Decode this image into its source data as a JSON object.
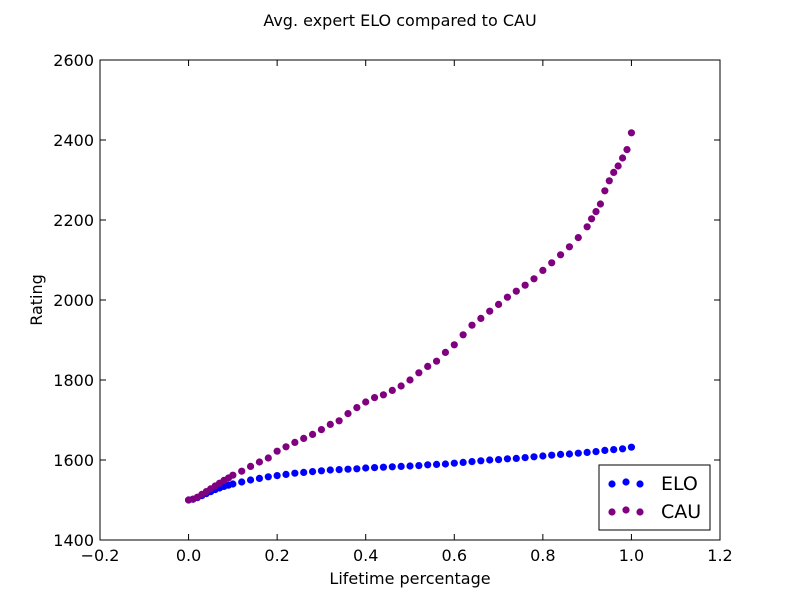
{
  "chart_data": {
    "type": "scatter",
    "title": "Avg. expert ELO compared to CAU",
    "xlabel": "Lifetime percentage",
    "ylabel": "Rating",
    "xlim": [
      -0.2,
      1.2
    ],
    "ylim": [
      1400,
      2600
    ],
    "xticks": [
      "−0.2",
      "0.0",
      "0.2",
      "0.4",
      "0.6",
      "0.8",
      "1.0",
      "1.2"
    ],
    "yticks": [
      "1400",
      "1600",
      "1800",
      "2000",
      "2200",
      "2400",
      "2600"
    ],
    "grid": false,
    "legend_position": "bottom-right",
    "series": [
      {
        "name": "ELO",
        "color": "#0000ff",
        "x": [
          0.0,
          0.01,
          0.02,
          0.03,
          0.04,
          0.05,
          0.06,
          0.07,
          0.08,
          0.09,
          0.1,
          0.12,
          0.14,
          0.16,
          0.18,
          0.2,
          0.22,
          0.24,
          0.26,
          0.28,
          0.3,
          0.32,
          0.34,
          0.36,
          0.38,
          0.4,
          0.42,
          0.44,
          0.46,
          0.48,
          0.5,
          0.52,
          0.54,
          0.56,
          0.58,
          0.6,
          0.62,
          0.64,
          0.66,
          0.68,
          0.7,
          0.72,
          0.74,
          0.76,
          0.78,
          0.8,
          0.82,
          0.84,
          0.86,
          0.88,
          0.9,
          0.92,
          0.94,
          0.96,
          0.98,
          1.0
        ],
        "y": [
          1500,
          1502,
          1506,
          1511,
          1516,
          1521,
          1526,
          1530,
          1534,
          1537,
          1540,
          1545,
          1550,
          1554,
          1558,
          1561,
          1564,
          1567,
          1569,
          1571,
          1573,
          1575,
          1576,
          1577,
          1578,
          1580,
          1581,
          1582,
          1583,
          1584,
          1585,
          1586,
          1588,
          1589,
          1590,
          1592,
          1594,
          1596,
          1598,
          1600,
          1601,
          1603,
          1604,
          1606,
          1608,
          1610,
          1612,
          1614,
          1615,
          1617,
          1619,
          1621,
          1624,
          1626,
          1628,
          1632
        ]
      },
      {
        "name": "CAU",
        "color": "#800080",
        "x": [
          0.0,
          0.01,
          0.02,
          0.03,
          0.04,
          0.05,
          0.06,
          0.07,
          0.08,
          0.09,
          0.1,
          0.12,
          0.14,
          0.16,
          0.18,
          0.2,
          0.22,
          0.24,
          0.26,
          0.28,
          0.3,
          0.32,
          0.34,
          0.36,
          0.38,
          0.4,
          0.42,
          0.44,
          0.46,
          0.48,
          0.5,
          0.52,
          0.54,
          0.56,
          0.58,
          0.6,
          0.62,
          0.64,
          0.66,
          0.68,
          0.7,
          0.72,
          0.74,
          0.76,
          0.78,
          0.8,
          0.82,
          0.84,
          0.86,
          0.88,
          0.9,
          0.91,
          0.92,
          0.93,
          0.94,
          0.95,
          0.96,
          0.97,
          0.98,
          0.99,
          1.0
        ],
        "y": [
          1500,
          1502,
          1507,
          1514,
          1521,
          1528,
          1535,
          1542,
          1549,
          1555,
          1562,
          1572,
          1584,
          1595,
          1605,
          1622,
          1633,
          1644,
          1654,
          1664,
          1676,
          1689,
          1698,
          1716,
          1731,
          1745,
          1756,
          1763,
          1774,
          1785,
          1800,
          1818,
          1834,
          1847,
          1869,
          1888,
          1913,
          1937,
          1954,
          1972,
          1989,
          2007,
          2022,
          2037,
          2053,
          2074,
          2093,
          2113,
          2133,
          2156,
          2183,
          2203,
          2221,
          2240,
          2273,
          2298,
          2319,
          2335,
          2355,
          2376,
          2418
        ]
      }
    ]
  }
}
